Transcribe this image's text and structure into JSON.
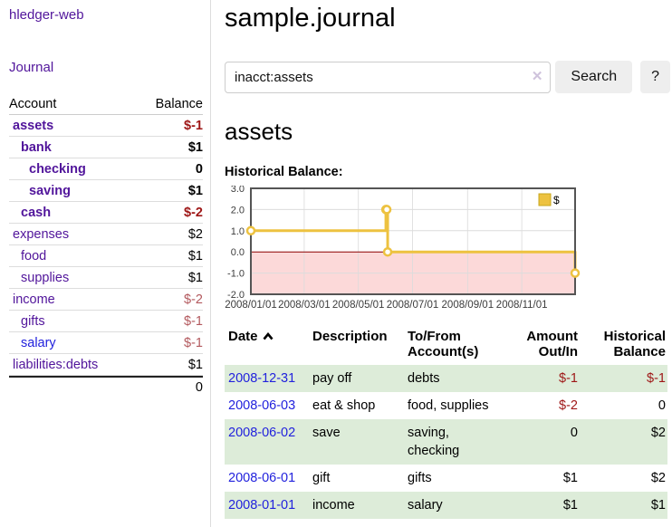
{
  "app": {
    "brand": "hledger-web"
  },
  "sidebar": {
    "nav": {
      "journal_label": "Journal"
    },
    "table": {
      "account_header": "Account",
      "balance_header": "Balance",
      "accounts": [
        {
          "name": "assets",
          "balance": "$-1"
        },
        {
          "name": "bank",
          "balance": "$1"
        },
        {
          "name": "checking",
          "balance": "0"
        },
        {
          "name": "saving",
          "balance": "$1"
        },
        {
          "name": "cash",
          "balance": "$-2"
        },
        {
          "name": "expenses",
          "balance": "$2"
        },
        {
          "name": "food",
          "balance": "$1"
        },
        {
          "name": "supplies",
          "balance": "$1"
        },
        {
          "name": "income",
          "balance": "$-2"
        },
        {
          "name": "gifts",
          "balance": "$-1"
        },
        {
          "name": "salary",
          "balance": "$-1"
        },
        {
          "name": "liabilities:debts",
          "balance": "$1"
        }
      ],
      "total": "0"
    }
  },
  "header": {
    "title": "sample.journal"
  },
  "search": {
    "value": "inacct:assets",
    "clear_icon": "✕",
    "button_label": "Search",
    "help_label": "?"
  },
  "account_page": {
    "heading": "assets",
    "chart_label": "Historical Balance:"
  },
  "chart_data": {
    "type": "line",
    "style": "step-after",
    "title": "Historical Balance:",
    "legend": [
      "$"
    ],
    "legend_position": "top-right",
    "xrange": [
      "2008-01-01",
      "2008-12-31"
    ],
    "ylim": [
      -2.0,
      3.0
    ],
    "grid": true,
    "series": [
      {
        "name": "$",
        "points": [
          [
            "2008-01-01",
            1
          ],
          [
            "2008-06-01",
            2
          ],
          [
            "2008-06-02",
            2
          ],
          [
            "2008-06-03",
            0
          ],
          [
            "2008-12-31",
            -1
          ]
        ]
      }
    ],
    "yticks": [
      {
        "v": 3.0,
        "label": "3.0"
      },
      {
        "v": 2.0,
        "label": "2.0"
      },
      {
        "v": 1.0,
        "label": "1.0"
      },
      {
        "v": 0.0,
        "label": "0.0"
      },
      {
        "v": -1.0,
        "label": "-1.0"
      },
      {
        "v": -2.0,
        "label": "-2.0"
      }
    ],
    "xticks": [
      {
        "d": "2008-01-01",
        "label": "2008/01/01"
      },
      {
        "d": "2008-03-01",
        "label": "2008/03/01"
      },
      {
        "d": "2008-05-01",
        "label": "2008/05/01"
      },
      {
        "d": "2008-07-01",
        "label": "2008/07/01"
      },
      {
        "d": "2008-09-01",
        "label": "2008/09/01"
      },
      {
        "d": "2008-11-01",
        "label": "2008/11/01"
      }
    ],
    "colors": {
      "line": "#edc240",
      "marker_fill": "#ffffff",
      "negative_fill": "#fcd9d9",
      "zero_line": "#8b0000",
      "grid": "#dcdcdc",
      "border": "#545454",
      "tick_text": "#3c3c3c",
      "legend_box_stroke": "#c7a71e"
    }
  },
  "register": {
    "headers": {
      "date": "Date",
      "description": "Description",
      "accounts": "To/From Account(s)",
      "amount": "Amount Out/In",
      "balance": "Historical Balance"
    },
    "rows": [
      {
        "date": "2008-12-31",
        "description": "pay off",
        "accounts": "debts",
        "amount": "$-1",
        "balance": "$-1"
      },
      {
        "date": "2008-06-03",
        "description": "eat & shop",
        "accounts": "food, supplies",
        "amount": "$-2",
        "balance": "0"
      },
      {
        "date": "2008-06-02",
        "description": "save",
        "accounts": "saving, checking",
        "amount": "0",
        "balance": "$2"
      },
      {
        "date": "2008-06-01",
        "description": "gift",
        "accounts": "gifts",
        "amount": "$1",
        "balance": "$2"
      },
      {
        "date": "2008-01-01",
        "description": "income",
        "accounts": "salary",
        "amount": "$1",
        "balance": "$1"
      }
    ]
  },
  "colors": {
    "link_purple": "#51159b",
    "link_blue": "#2222dd",
    "negative_strong": "#9e1616",
    "negative_soft": "#b3595e",
    "row_green": "#ddecd9"
  }
}
